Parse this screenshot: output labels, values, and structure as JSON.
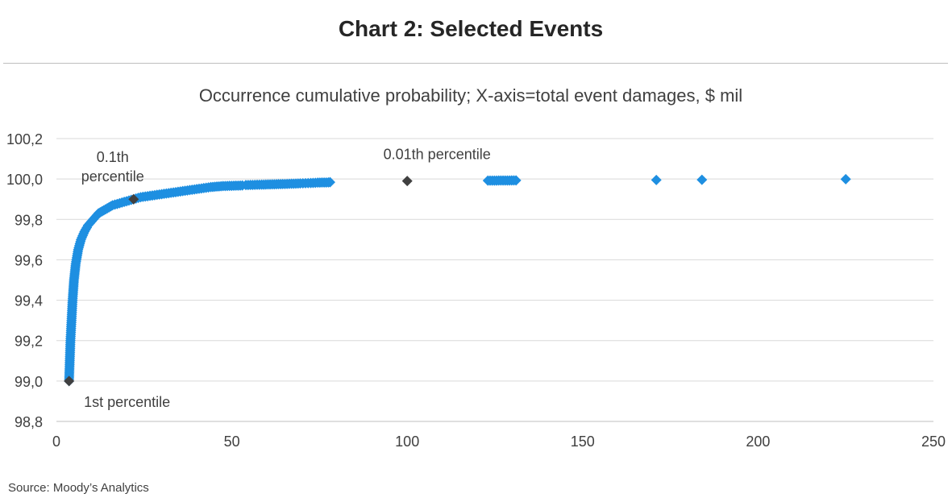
{
  "title": "Chart 2: Selected Events",
  "subtitle": "Occurrence cumulative probability;  X-axis=total event damages, $ mil",
  "source": "Source: Moody’s Analytics",
  "colors": {
    "series": "#1e8fe1",
    "highlight": "#404040",
    "grid": "#d9d9d9"
  },
  "chart_data": {
    "type": "scatter",
    "title": "Chart 2: Selected Events",
    "subtitle": "Occurrence cumulative probability;  X-axis=total event damages, $ mil",
    "xlim": [
      0,
      250
    ],
    "ylim": [
      98.8,
      100.2
    ],
    "x_ticks": [
      "0",
      "50",
      "100",
      "150",
      "200",
      "250"
    ],
    "y_ticks": [
      "98,8",
      "99,0",
      "99,2",
      "99,4",
      "99,6",
      "99,8",
      "100,0",
      "100,2"
    ],
    "grid": "horizontal",
    "series": [
      {
        "points": [
          [
            3.6,
            99.0
          ],
          [
            3.8,
            99.1
          ],
          [
            4.0,
            99.2
          ],
          [
            4.3,
            99.3
          ],
          [
            4.6,
            99.4
          ],
          [
            5.0,
            99.5
          ],
          [
            5.5,
            99.58
          ],
          [
            6.2,
            99.65
          ],
          [
            7.0,
            99.7
          ],
          [
            8.0,
            99.74
          ],
          [
            9.0,
            99.77
          ],
          [
            10.5,
            99.8
          ],
          [
            12.0,
            99.83
          ],
          [
            14.0,
            99.85
          ],
          [
            16.0,
            99.87
          ],
          [
            18.0,
            99.88
          ],
          [
            20.0,
            99.89
          ],
          [
            22.0,
            99.9
          ],
          [
            24.0,
            99.91
          ],
          [
            26.0,
            99.915
          ],
          [
            28.0,
            99.92
          ],
          [
            30.0,
            99.925
          ],
          [
            32.0,
            99.93
          ],
          [
            34.0,
            99.935
          ],
          [
            36.0,
            99.94
          ],
          [
            38.0,
            99.945
          ],
          [
            40.0,
            99.95
          ],
          [
            42.0,
            99.955
          ],
          [
            44.0,
            99.96
          ],
          [
            47.5,
            99.965
          ],
          [
            53.0,
            99.968
          ],
          [
            54.0,
            99.97
          ],
          [
            58.5,
            99.972
          ],
          [
            64.5,
            99.975
          ],
          [
            69.5,
            99.978
          ],
          [
            71.0,
            99.979
          ],
          [
            72.5,
            99.98
          ],
          [
            74.5,
            99.982
          ],
          [
            77.5,
            99.983
          ],
          [
            78.0,
            99.984
          ],
          [
            123.0,
            99.992
          ],
          [
            131.0,
            99.993
          ],
          [
            171.0,
            99.995
          ],
          [
            184.0,
            99.996
          ],
          [
            225.0,
            99.999
          ]
        ]
      },
      {
        "points": [
          [
            3.6,
            99.0
          ],
          [
            22.0,
            99.9
          ],
          [
            100.0,
            99.99
          ]
        ]
      }
    ],
    "annotations": [
      {
        "text": "0.1th",
        "x": 22.0,
        "y": 99.9
      },
      {
        "text": "percentile",
        "x": 22.0,
        "y": 99.9
      },
      {
        "text": "0.01th percentile",
        "x": 100.0,
        "y": 99.99
      },
      {
        "text": "1st percentile",
        "x": 3.6,
        "y": 99.0
      }
    ]
  }
}
